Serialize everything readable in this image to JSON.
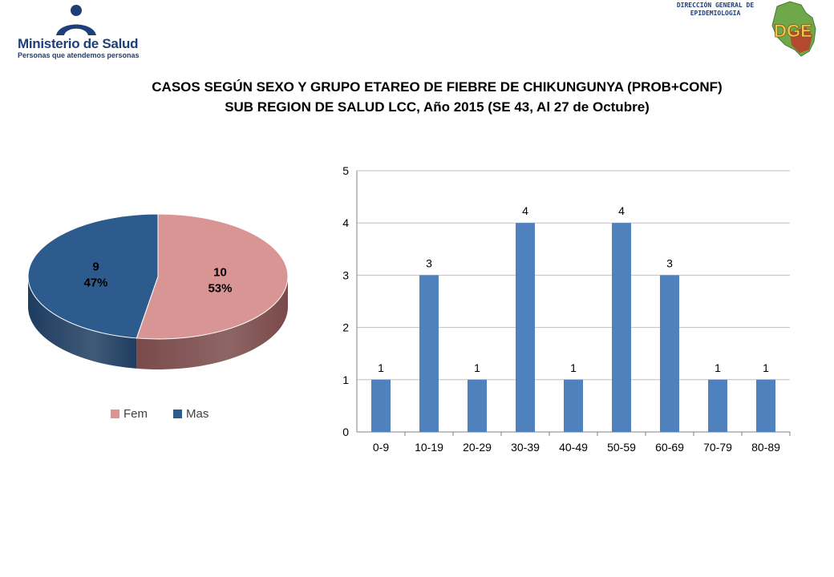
{
  "header": {
    "ministry_name": "Ministerio de Salud",
    "ministry_slogan": "Personas que atendemos personas",
    "dge_title_line1": "DIRECCIÓN GENERAL DE",
    "dge_title_line2": "EPIDEMIOLOGIA",
    "dge_logo_letters": "DGE"
  },
  "title_line1": "CASOS SEGÚN SEXO Y GRUPO ETAREO DE FIEBRE DE CHIKUNGUNYA (PROB+CONF)",
  "title_line2": "SUB REGION DE SALUD LCC, Año 2015 (SE 43, Al 27 de Octubre)",
  "colors": {
    "fem": "#d99594",
    "fem_side": "#7a4a4a",
    "mas": "#2e5b8e",
    "mas_side": "#1e3c60",
    "bar": "#4f81bd",
    "grid": "#bfbfbf"
  },
  "chart_data": [
    {
      "type": "pie",
      "slices": [
        {
          "name": "Fem",
          "value": 10,
          "label_value": "10",
          "label_pct": "53%"
        },
        {
          "name": "Mas",
          "value": 9,
          "label_value": "9",
          "label_pct": "47%"
        }
      ],
      "legend": [
        "Fem",
        "Mas"
      ],
      "legend_position": "bottom"
    },
    {
      "type": "bar",
      "categories": [
        "0-9",
        "10-19",
        "20-29",
        "30-39",
        "40-49",
        "50-59",
        "60-69",
        "70-79",
        "80-89"
      ],
      "values": [
        1,
        3,
        1,
        4,
        1,
        4,
        3,
        1,
        1
      ],
      "ylim": [
        0,
        5
      ],
      "yticks": [
        "0",
        "1",
        "2",
        "3",
        "4",
        "5"
      ],
      "grid": true,
      "data_labels": true
    }
  ]
}
